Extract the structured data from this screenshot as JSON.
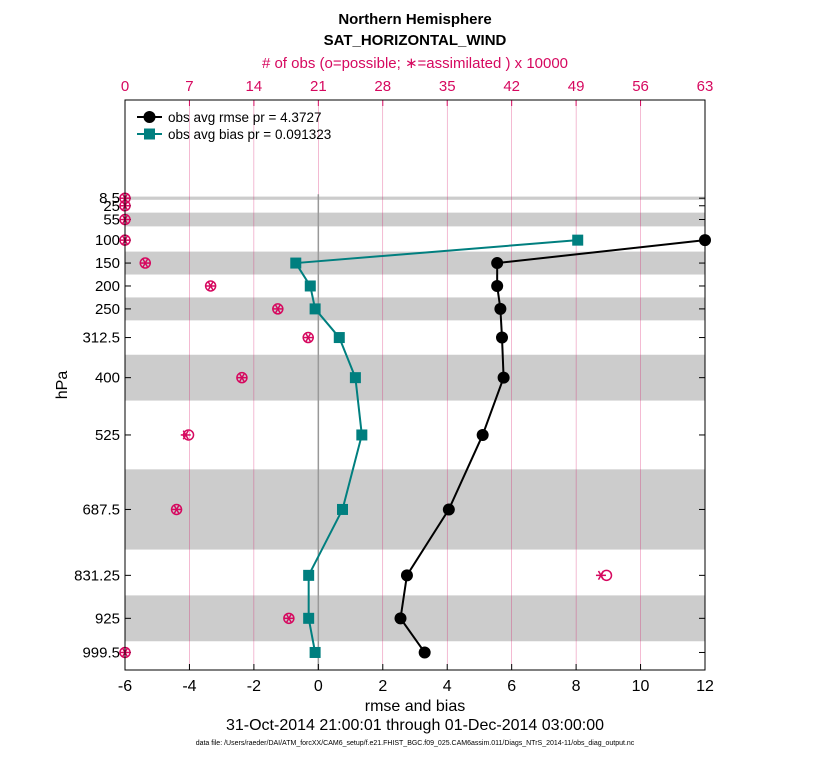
{
  "chart_data": {
    "type": "line",
    "title": "Northern Hemisphere",
    "subtitle": "SAT_HORIZONTAL_WIND",
    "top_axis_label": "# of obs (o=possible; ∗=assimilated ) x 10000",
    "top_ticks": [
      "0",
      "7",
      "14",
      "21",
      "28",
      "35",
      "42",
      "49",
      "56",
      "63"
    ],
    "top_range": [
      0,
      63
    ],
    "xlabel": "rmse and bias",
    "xlim": [
      -6,
      12
    ],
    "x_ticks": [
      "-6",
      "-4",
      "-2",
      "0",
      "2",
      "4",
      "6",
      "8",
      "10",
      "12"
    ],
    "ylabel": "hPa",
    "levels": [
      "8.5",
      "25",
      "55",
      "100",
      "150",
      "200",
      "250",
      "312.5",
      "400",
      "525",
      "687.5",
      "831.25",
      "925",
      "999.5"
    ],
    "level_values": [
      8.5,
      25,
      55,
      100,
      150,
      200,
      250,
      312.5,
      400,
      525,
      687.5,
      831.25,
      925,
      999.5
    ],
    "grey_bands": [
      [
        5,
        12
      ],
      [
        40,
        70
      ],
      [
        125,
        175
      ],
      [
        225,
        275
      ],
      [
        350,
        450
      ],
      [
        600,
        775
      ],
      [
        875,
        975
      ]
    ],
    "series": [
      {
        "name": "obs avg rmse pr = 4.3727",
        "color": "#000000",
        "marker": "circle",
        "points": [
          {
            "level": 100,
            "x": 12.0
          },
          {
            "level": 150,
            "x": 5.55
          },
          {
            "level": 200,
            "x": 5.55
          },
          {
            "level": 250,
            "x": 5.65
          },
          {
            "level": 312.5,
            "x": 5.7
          },
          {
            "level": 400,
            "x": 5.75
          },
          {
            "level": 525,
            "x": 5.1
          },
          {
            "level": 687.5,
            "x": 4.05
          },
          {
            "level": 831.25,
            "x": 2.75
          },
          {
            "level": 925,
            "x": 2.55
          },
          {
            "level": 999.5,
            "x": 3.3
          }
        ]
      },
      {
        "name": "obs avg bias pr = 0.091323",
        "color": "#007f7f",
        "marker": "square",
        "points": [
          {
            "level": 100,
            "x": 8.05
          },
          {
            "level": 150,
            "x": -0.7
          },
          {
            "level": 200,
            "x": -0.25
          },
          {
            "level": 250,
            "x": -0.1
          },
          {
            "level": 312.5,
            "x": 0.65
          },
          {
            "level": 400,
            "x": 1.15
          },
          {
            "level": 525,
            "x": 1.35
          },
          {
            "level": 687.5,
            "x": 0.75
          },
          {
            "level": 831.25,
            "x": -0.3
          },
          {
            "level": 925,
            "x": -0.3
          },
          {
            "level": 999.5,
            "x": -0.1
          }
        ]
      }
    ],
    "obs_counts": {
      "color": "#d6085f",
      "possible": [
        {
          "level": 8.5,
          "n": 0
        },
        {
          "level": 25,
          "n": 0
        },
        {
          "level": 55,
          "n": 0
        },
        {
          "level": 100,
          "n": 0
        },
        {
          "level": 150,
          "n": 2.2
        },
        {
          "level": 200,
          "n": 9.3
        },
        {
          "level": 250,
          "n": 16.6
        },
        {
          "level": 312.5,
          "n": 19.9
        },
        {
          "level": 400,
          "n": 12.7
        },
        {
          "level": 525,
          "n": 6.9
        },
        {
          "level": 687.5,
          "n": 5.6
        },
        {
          "level": 831.25,
          "n": 52.3
        },
        {
          "level": 925,
          "n": 17.8
        },
        {
          "level": 999.5,
          "n": 0
        }
      ],
      "assimilated": [
        {
          "level": 8.5,
          "n": 0
        },
        {
          "level": 25,
          "n": 0
        },
        {
          "level": 55,
          "n": 0
        },
        {
          "level": 100,
          "n": 0
        },
        {
          "level": 150,
          "n": 2.2
        },
        {
          "level": 200,
          "n": 9.3
        },
        {
          "level": 250,
          "n": 16.6
        },
        {
          "level": 312.5,
          "n": 19.9
        },
        {
          "level": 400,
          "n": 12.7
        },
        {
          "level": 525,
          "n": 6.6
        },
        {
          "level": 687.5,
          "n": 5.6
        },
        {
          "level": 831.25,
          "n": 51.7
        },
        {
          "level": 925,
          "n": 17.8
        },
        {
          "level": 999.5,
          "n": 0
        }
      ]
    },
    "date_range": "31-Oct-2014 21:00:01 through 01-Dec-2014 03:00:00",
    "footnote": "data file: /Users/raeder/DAI/ATM_forcXX/CAM6_setup/f.e21.FHIST_BGC.f09_025.CAM6assim.011/Diags_NTrS_2014-11/obs_diag_output.nc"
  }
}
